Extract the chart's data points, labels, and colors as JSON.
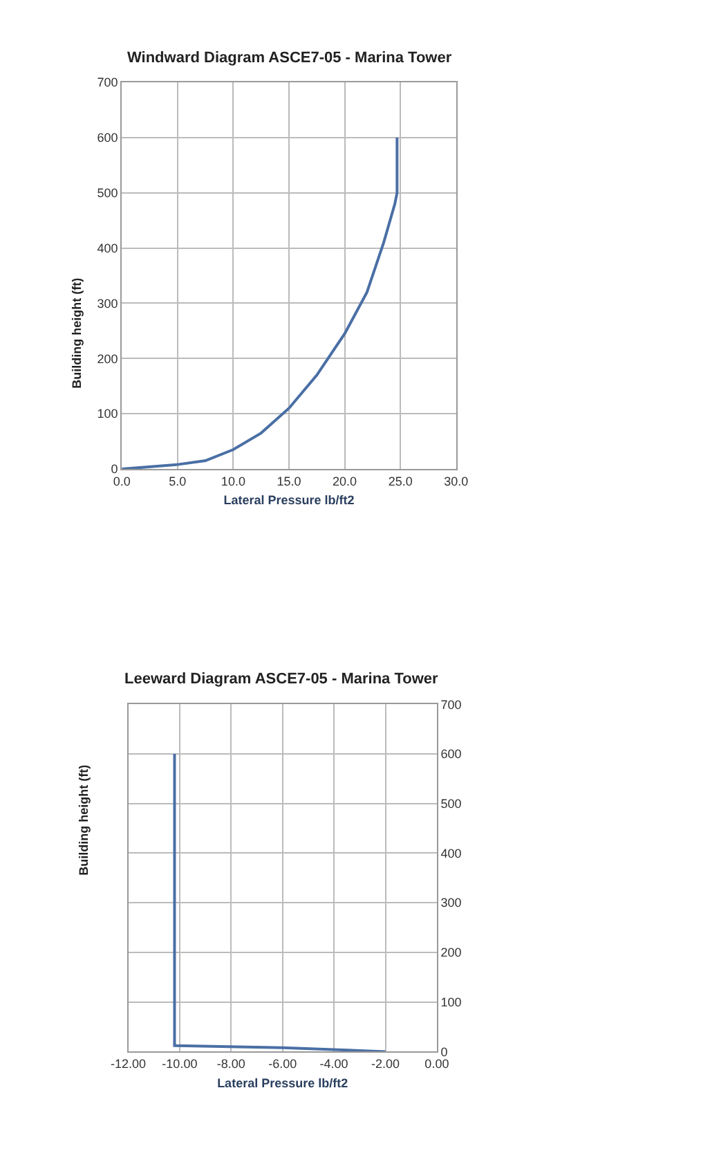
{
  "chart_data": [
    {
      "type": "line",
      "title": "Windward Diagram ASCE7-05 - Marina Tower",
      "xlabel": "Lateral Pressure lb/ft2",
      "ylabel": "Building height (ft)",
      "series": [
        {
          "color": "#4a6fa5",
          "x": [
            0,
            2,
            5,
            7.5,
            10,
            12.5,
            15,
            17.5,
            20,
            22,
            23.5,
            24.5,
            24.7,
            24.7
          ],
          "values": [
            0,
            3,
            8,
            15,
            35,
            65,
            110,
            170,
            245,
            320,
            410,
            480,
            500,
            600
          ]
        }
      ],
      "xlim": [
        0,
        30
      ],
      "xticks": [
        {
          "value": 0,
          "label": "0.0"
        },
        {
          "value": 5,
          "label": "5.0"
        },
        {
          "value": 10,
          "label": "10.0"
        },
        {
          "value": 15,
          "label": "15.0"
        },
        {
          "value": 20,
          "label": "20.0"
        },
        {
          "value": 25,
          "label": "25.0"
        },
        {
          "value": 30,
          "label": "30.0"
        }
      ],
      "ylim": [
        0,
        700
      ],
      "yticks": [
        0,
        100,
        200,
        300,
        400,
        500,
        600,
        700
      ],
      "grid": true,
      "marker": "none",
      "line_style": "solid"
    },
    {
      "type": "line",
      "title": "Leeward Diagram ASCE7-05 - Marina Tower",
      "xlabel": "Lateral Pressure lb/ft2",
      "ylabel": "Building height (ft)",
      "series": [
        {
          "color": "#4a6fa5",
          "x": [
            -10.2,
            -10.2,
            -6,
            -2
          ],
          "values": [
            600,
            12,
            8,
            0
          ]
        }
      ],
      "xlim": [
        -12,
        0
      ],
      "xticks": [
        {
          "value": -12,
          "label": "-12.00"
        },
        {
          "value": -10,
          "label": "-10.00"
        },
        {
          "value": -8,
          "label": "-8.00"
        },
        {
          "value": -6,
          "label": "-6.00"
        },
        {
          "value": -4,
          "label": "-4.00"
        },
        {
          "value": -2,
          "label": "-2.00"
        },
        {
          "value": 0,
          "label": "0.00"
        }
      ],
      "ylim": [
        0,
        700
      ],
      "yticks": [
        0,
        100,
        200,
        300,
        400,
        500,
        600,
        700
      ],
      "grid": true,
      "marker": "none",
      "line_style": "solid"
    }
  ]
}
